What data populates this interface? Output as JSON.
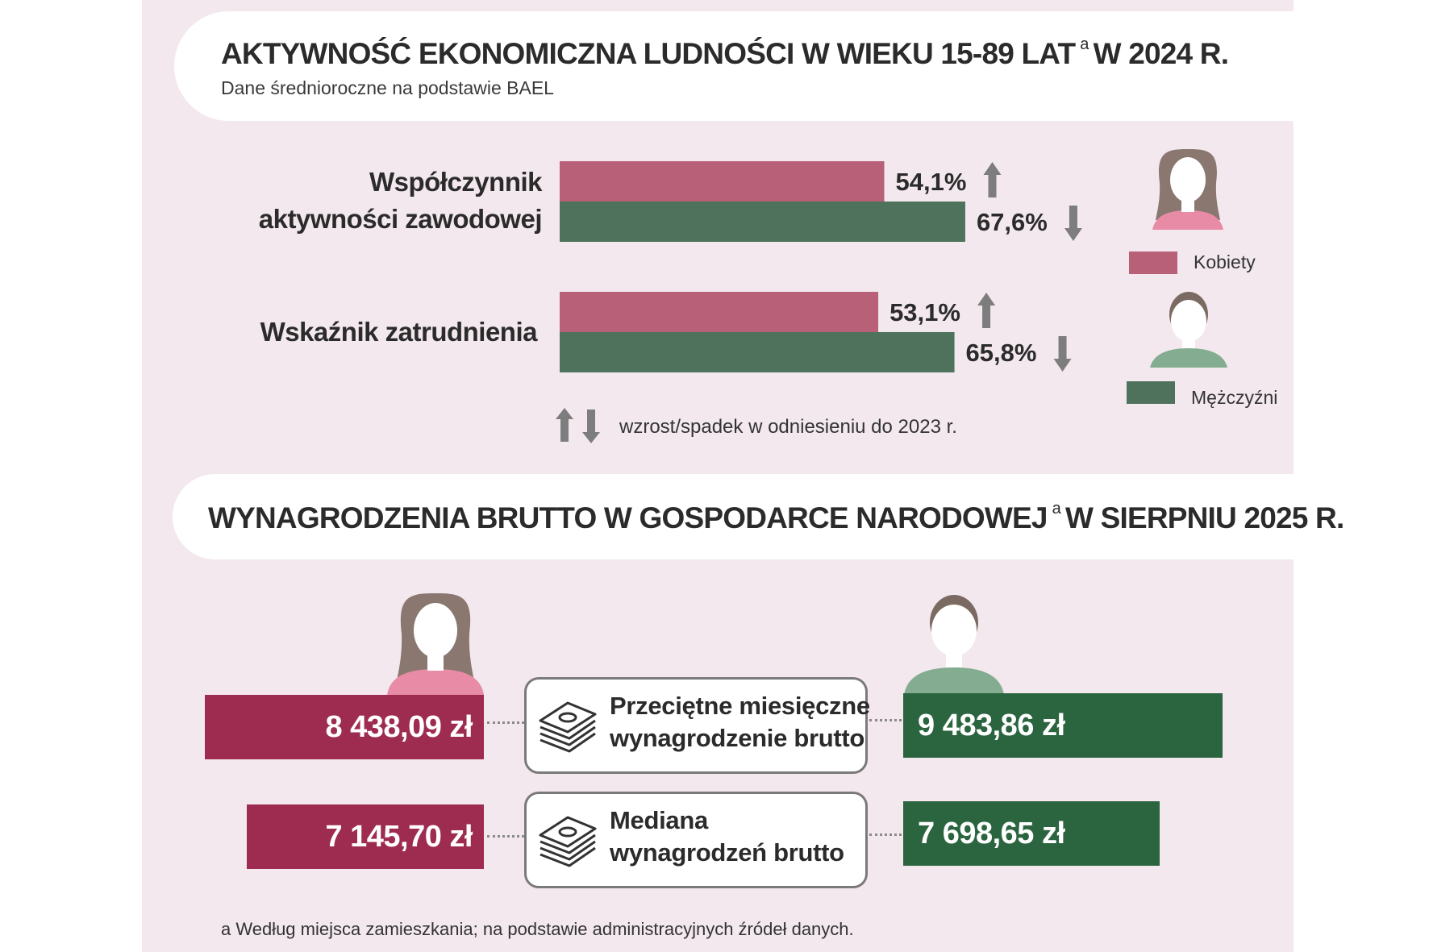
{
  "section1": {
    "title_pre": "AKTYWNOŚĆ EKONOMICZNA LUDNOŚCI W WIEKU 15-89 LAT",
    "title_sup": "a",
    "title_post": "W 2024 R.",
    "subtitle": "Dane średnioroczne na podstawie BAEL"
  },
  "section2": {
    "title_pre": "WYNAGRODZENIA BRUTTO W GOSPODARCE NARODOWEJ",
    "title_sup": "a",
    "title_post": "W SIERPNIU 2025 R."
  },
  "colors": {
    "women_bar": "#b86078",
    "men_bar": "#4e725c",
    "women_box": "#9e2b50",
    "men_box": "#2b653f",
    "arrow": "#7d7d7d"
  },
  "chart_data": {
    "type": "bar",
    "orientation": "horizontal",
    "categories": [
      "Współczynnik aktywności zawodowej",
      "Wskaźnik zatrudnienia"
    ],
    "category_lines": [
      [
        "Współczynnik",
        "aktywności zawodowej"
      ],
      [
        "Wskaźnik zatrudnienia"
      ]
    ],
    "series": [
      {
        "name": "Kobiety",
        "values": [
          54.1,
          53.1
        ],
        "labels": [
          "54,1%",
          "53,1%"
        ],
        "trend": [
          "up",
          "up"
        ]
      },
      {
        "name": "Mężczyźni",
        "values": [
          67.6,
          65.8
        ],
        "labels": [
          "67,6%",
          "65,8%"
        ],
        "trend": [
          "down",
          "down"
        ]
      }
    ],
    "legend": [
      "Kobiety",
      "Mężczyźni"
    ],
    "legend_position": "right",
    "note": "wzrost/spadek w odniesieniu do 2023 r.",
    "icons": [
      "woman-icon",
      "man-icon",
      "up-arrow-icon",
      "down-arrow-icon"
    ]
  },
  "wages": {
    "rows": [
      {
        "label_lines": [
          "Przeciętne miesięczne",
          "wynagrodzenie brutto"
        ],
        "women": "8 438,09 zł",
        "men": "9 483,86 zł",
        "women_value": 8438.09,
        "men_value": 9483.86
      },
      {
        "label_lines": [
          "Mediana",
          "wynagrodzeń brutto"
        ],
        "women": "7 145,70 zł",
        "men": "7 698,65 zł",
        "women_value": 7145.7,
        "men_value": 7698.65
      }
    ],
    "icons": [
      "money-stack-icon",
      "woman-icon",
      "man-icon"
    ]
  },
  "footnote": "a Według miejsca zamieszkania; na podstawie administracyjnych źródeł danych."
}
